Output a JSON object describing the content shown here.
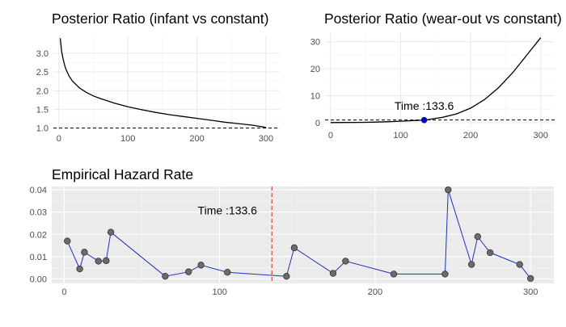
{
  "chart_data": [
    {
      "id": "infant",
      "type": "line",
      "title": "Posterior Ratio (infant vs constant)",
      "xlim": [
        -8,
        320
      ],
      "ylim": [
        0.95,
        3.45
      ],
      "x_ticks": [
        0,
        100,
        200,
        300
      ],
      "x_tick_labels": [
        "0",
        "100",
        "200",
        "300"
      ],
      "y_ticks": [
        1.0,
        1.5,
        2.0,
        2.5,
        3.0
      ],
      "y_tick_labels": [
        "1.0",
        "1.5",
        "2.0",
        "2.5",
        "3.0"
      ],
      "reference_line": 1.0,
      "grid": true,
      "series": [
        {
          "x": [
            2,
            4,
            6,
            8,
            10,
            15,
            20,
            30,
            40,
            50,
            60,
            80,
            100,
            120,
            140,
            160,
            180,
            200,
            220,
            240,
            260,
            280,
            300
          ],
          "y": [
            3.4,
            3.05,
            2.85,
            2.7,
            2.58,
            2.38,
            2.25,
            2.07,
            1.95,
            1.86,
            1.79,
            1.67,
            1.57,
            1.49,
            1.42,
            1.36,
            1.31,
            1.26,
            1.21,
            1.16,
            1.12,
            1.08,
            1.02
          ]
        }
      ]
    },
    {
      "id": "wearout",
      "type": "line",
      "title": "Posterior Ratio (wear-out vs constant)",
      "xlim": [
        -8,
        320
      ],
      "ylim": [
        -1.5,
        33.5
      ],
      "x_ticks": [
        0,
        100,
        200,
        300
      ],
      "x_tick_labels": [
        "0",
        "100",
        "200",
        "300"
      ],
      "y_ticks": [
        0,
        10,
        20,
        30
      ],
      "y_tick_labels": [
        "0",
        "10",
        "20",
        "30"
      ],
      "reference_line": 1.0,
      "grid": true,
      "marker": {
        "x": 133.6,
        "y": 1.0,
        "color": "#0000cc"
      },
      "annotation": {
        "text": "Time :133.6",
        "x": 133.6,
        "y": 4.8
      },
      "series": [
        {
          "x": [
            0,
            20,
            40,
            60,
            80,
            100,
            120,
            133.6,
            140,
            160,
            180,
            200,
            220,
            240,
            260,
            280,
            300
          ],
          "y": [
            0.05,
            0.08,
            0.12,
            0.2,
            0.35,
            0.55,
            0.8,
            1.0,
            1.2,
            2.0,
            3.3,
            5.4,
            8.6,
            13.0,
            18.5,
            25.0,
            31.5
          ]
        }
      ]
    },
    {
      "id": "hazard",
      "type": "line",
      "title": "Empirical Hazard Rate",
      "xlim": [
        -8,
        315
      ],
      "ylim": [
        -0.002,
        0.0415
      ],
      "x_ticks": [
        0,
        100,
        200,
        300
      ],
      "x_tick_labels": [
        "0",
        "100",
        "200",
        "300"
      ],
      "y_ticks": [
        0,
        0.01,
        0.02,
        0.03,
        0.04
      ],
      "y_tick_labels": [
        "0.00",
        "0.01",
        "0.02",
        "0.03",
        "0.04"
      ],
      "grid": true,
      "background": "#ebebeb",
      "vertical_line": {
        "x": 133.6,
        "color": "#d62728"
      },
      "annotation": {
        "text": "Time :133.6",
        "x": 105,
        "y": 0.029
      },
      "series": [
        {
          "x": [
            2,
            10,
            13,
            22,
            27,
            30,
            65,
            80,
            88,
            105,
            143,
            148,
            173,
            181,
            212,
            245,
            247,
            262,
            266,
            274,
            293,
            300
          ],
          "y": [
            0.017,
            0.0045,
            0.012,
            0.008,
            0.0082,
            0.021,
            0.0012,
            0.0032,
            0.0062,
            0.003,
            0.0012,
            0.014,
            0.0025,
            0.008,
            0.0022,
            0.0022,
            0.04,
            0.0065,
            0.019,
            0.0118,
            0.0065,
            0.0002
          ]
        }
      ]
    }
  ]
}
